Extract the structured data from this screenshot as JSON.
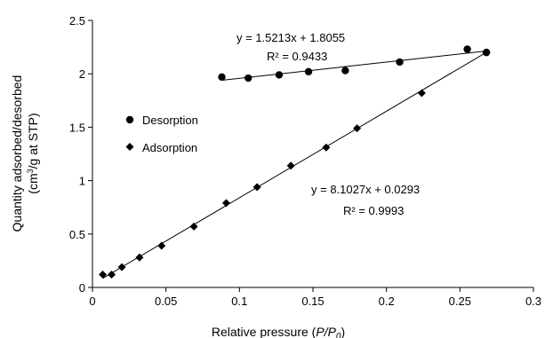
{
  "chart_data": {
    "type": "scatter",
    "xlabel": "Relative pressure (P/P0)",
    "xlabel_parts": [
      "Relative pressure (",
      "P/P",
      "0",
      ")"
    ],
    "ylabel_line1": "Quantity adsorbed/desorbed",
    "ylabel_line2_parts": [
      "(cm",
      "3",
      "/g at STP)"
    ],
    "xlim": [
      0,
      0.3
    ],
    "ylim": [
      0,
      2.5
    ],
    "xticks": [
      0,
      0.05,
      0.1,
      0.15,
      0.2,
      0.25,
      0.3
    ],
    "xtick_labels": [
      "0",
      "0.05",
      "0.1",
      "0.15",
      "0.2",
      "0.25",
      "0.3"
    ],
    "yticks": [
      0,
      0.5,
      1,
      1.5,
      2,
      2.5
    ],
    "ytick_labels": [
      "0",
      "0.5",
      "1",
      "1.5",
      "2",
      "2.5"
    ],
    "grid": false,
    "legend_position": "left-middle",
    "series": [
      {
        "name": "Desorption",
        "marker": "circle",
        "color": "#000000",
        "points": [
          [
            0.088,
            1.97
          ],
          [
            0.106,
            1.96
          ],
          [
            0.127,
            1.99
          ],
          [
            0.147,
            2.02
          ],
          [
            0.172,
            2.03
          ],
          [
            0.209,
            2.11
          ],
          [
            0.255,
            2.23
          ],
          [
            0.268,
            2.2
          ]
        ],
        "trendline": {
          "slope": 1.5213,
          "intercept": 1.8055,
          "x_range": [
            0.088,
            0.268
          ],
          "equation": "y = 1.5213x + 1.8055",
          "r2": "R² = 0.9433"
        }
      },
      {
        "name": "Adsorption",
        "marker": "diamond",
        "color": "#000000",
        "points": [
          [
            0.007,
            0.12
          ],
          [
            0.013,
            0.12
          ],
          [
            0.02,
            0.19
          ],
          [
            0.032,
            0.28
          ],
          [
            0.047,
            0.39
          ],
          [
            0.069,
            0.57
          ],
          [
            0.091,
            0.79
          ],
          [
            0.112,
            0.94
          ],
          [
            0.135,
            1.14
          ],
          [
            0.159,
            1.31
          ],
          [
            0.18,
            1.49
          ],
          [
            0.224,
            1.82
          ],
          [
            0.268,
            2.2
          ]
        ],
        "trendline": {
          "slope": 8.1027,
          "intercept": 0.0293,
          "x_range": [
            0.007,
            0.268
          ],
          "equation": "y = 8.1027x + 0.0293",
          "r2": "R² = 0.9993"
        }
      }
    ]
  }
}
